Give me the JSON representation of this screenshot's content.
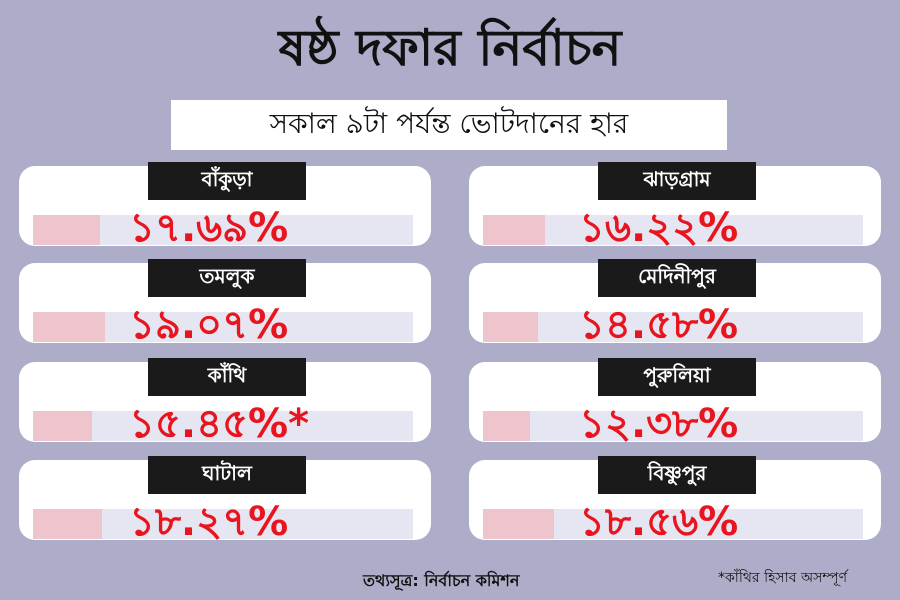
{
  "title": "ষষ্ঠ দফার নির্বাচন",
  "subtitle": "সকাল ৯টা পর্যন্ত ভোটদানের হার",
  "source": "তথ্যসূত্র: নির্বাচন কমিশন",
  "footnote": "*কাঁথির হিসাব অসম্পূর্ণ",
  "colors": {
    "background": "#adadc9",
    "card": "#ffffff",
    "tag": "#1a1a1a",
    "value": "#e8141e",
    "bar_fill": "#eec5cc",
    "bar_track": "#e6e6f2"
  },
  "chart_data": {
    "type": "bar",
    "unit": "%",
    "xlim": [
      0,
      100
    ],
    "categories": [
      "বাঁকুড়া",
      "তমলুক",
      "কাঁথি",
      "ঘাটাল",
      "ঝাড়গ্রাম",
      "মেদিনীপুর",
      "পুরুলিয়া",
      "বিষ্ণুপুর"
    ],
    "values": [
      17.69,
      19.07,
      15.45,
      18.27,
      16.22,
      14.58,
      12.38,
      18.56
    ],
    "labels": [
      "১৭.৬৯%",
      "১৯.০৭%",
      "১৫.৪৫%*",
      "১৮.২৭%",
      "১৬.২২%",
      "১৪.৫৮%",
      "১২.৩৮%",
      "১৮.৫৬%"
    ]
  }
}
